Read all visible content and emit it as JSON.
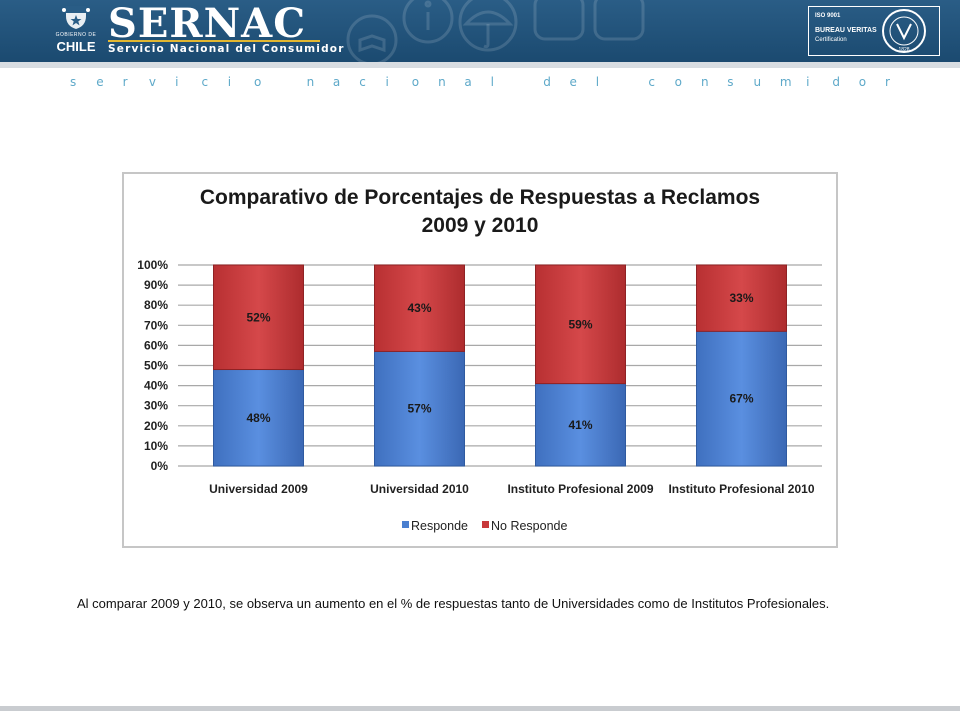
{
  "header": {
    "gov_small": "GOBIERNO DE",
    "gov_big": "CHILE",
    "logo_text": "SERNAC",
    "subtitle": "Servicio Nacional del Consumidor",
    "cert_iso": "ISO 9001",
    "cert_name": "BUREAU VERITAS",
    "cert_sub": "Certification",
    "cert_year": "1828"
  },
  "tagline": "servicio nacional del consumidor",
  "colors": {
    "header_bg": "#1d4d73",
    "responde": "#4a7fd0",
    "no_responde": "#c8383a",
    "tagline": "#5ea9c9",
    "accent_underline": "#e3b730"
  },
  "chart_data": {
    "type": "bar",
    "stacked": true,
    "title": "Comparativo de Porcentajes de Respuestas a Reclamos 2009 y 2010",
    "title_lines": [
      "Comparativo de Porcentajes de Respuestas a Reclamos",
      "2009 y 2010"
    ],
    "categories": [
      "Universidad 2009",
      "Universidad 2010",
      "Instituto Profesional 2009",
      "Instituto Profesional 2010"
    ],
    "series": [
      {
        "name": "Responde",
        "values": [
          48,
          57,
          41,
          67
        ],
        "labels": [
          "48%",
          "57%",
          "41%",
          "67%"
        ],
        "color": "#4a7fd0"
      },
      {
        "name": "No Responde",
        "values": [
          52,
          43,
          59,
          33
        ],
        "labels": [
          "52%",
          "43%",
          "59%",
          "33%"
        ],
        "color": "#c8383a"
      }
    ],
    "yticks": [
      "0%",
      "10%",
      "20%",
      "30%",
      "40%",
      "50%",
      "60%",
      "70%",
      "80%",
      "90%",
      "100%"
    ],
    "ylim": [
      0,
      100
    ],
    "grid": true,
    "legend_position": "bottom"
  },
  "caption": "Al comparar 2009 y 2010, se observa un aumento en el % de respuestas tanto de Universidades como de Institutos Profesionales."
}
